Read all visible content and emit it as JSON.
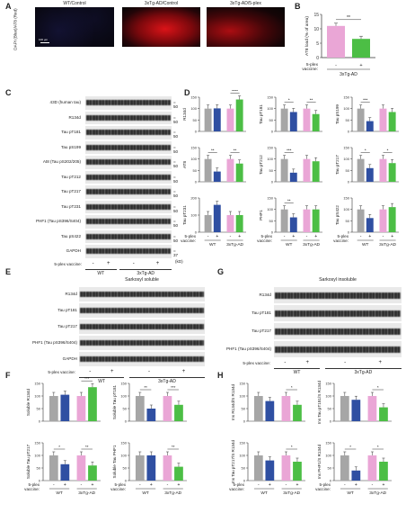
{
  "panels": {
    "A": {
      "letter": "A",
      "ylabel": "DAPI (Blue)/AT8 (Red)",
      "images": [
        "WT/Control",
        "3xTg-AD/Control",
        "3xTg-AD/5-plex"
      ],
      "scalebar": "100 μm"
    },
    "B": {
      "letter": "B",
      "ylabel": "AT8 load (% of area)",
      "xlabel_group": "3xTg-AD",
      "vaccine_label": "5-plex vaccine:",
      "signs": [
        "-",
        "+"
      ],
      "significance": "**"
    },
    "C": {
      "letter": "C",
      "bands": [
        "43D (human tau)",
        "R134d",
        "Tau pT181",
        "Tau pS199",
        "At8 (Tau pS202/205)",
        "Tau pT212",
        "Tau pT217",
        "Tau pT231",
        "PHF1 (Tau pS396/S404)",
        "Tau pS422",
        "GAPDH"
      ],
      "mw": [
        "50",
        "50",
        "50",
        "50",
        "50",
        "50",
        "50",
        "50",
        "50",
        "50",
        "37"
      ],
      "kd": "(kD)",
      "vaccine_label": "5-plex vaccine:",
      "signs": [
        "-",
        "+",
        "-",
        "+"
      ],
      "groups": [
        "WT",
        "3xTg-AD"
      ]
    },
    "D": {
      "letter": "D",
      "vaccine_label": "5-plex vaccine:",
      "groups": [
        "WT",
        "3xTg-AD"
      ],
      "signs": [
        "-",
        "+",
        "-",
        "+"
      ]
    },
    "E": {
      "letter": "E",
      "title": "Sarkosyl soluble",
      "bands": [
        "R134d",
        "Tau pT181",
        "Tau pT217",
        "PHF1 (Tau pS396/S404)",
        "GAPDH"
      ],
      "vaccine_label": "5-plex vaccine:",
      "signs": [
        "-",
        "+",
        "-",
        "+"
      ],
      "groups": [
        "WT",
        "3xTg-AD"
      ]
    },
    "F": {
      "letter": "F",
      "vaccine_label": "5-plex vaccine:",
      "groups": [
        "WT",
        "3xTg-AD"
      ],
      "signs": [
        "-",
        "+",
        "-",
        "+"
      ]
    },
    "G": {
      "letter": "G",
      "title": "Sarkosyl insoluble",
      "bands": [
        "R134d",
        "Tau pT181",
        "Tau pT217",
        "PHF1 (Tau pS396/S404)"
      ],
      "vaccine_label": "5-plex vaccine:",
      "signs": [
        "-",
        "+",
        "-",
        "+"
      ],
      "groups": [
        "WT",
        "3xTg-AD"
      ]
    },
    "H": {
      "letter": "H",
      "vaccine_label": "5-plex vaccine:",
      "groups": [
        "WT",
        "3xTg-AD"
      ],
      "signs": [
        "-",
        "+",
        "-",
        "+"
      ]
    }
  },
  "colors": {
    "wt_ctrl": "#a6a6a6",
    "wt_vac": "#2f4fa2",
    "ad_ctrl": "#eaa6d6",
    "ad_vac": "#4cbe45"
  },
  "chart_data": [
    {
      "type": "bar",
      "panel": "B",
      "categories": [
        "-",
        "+"
      ],
      "values": [
        11,
        6.5
      ],
      "ylabel": "AT8 load (% of area)",
      "ylim": [
        0,
        15
      ],
      "yticks": [
        0,
        5,
        10,
        15
      ],
      "sig": [
        "**"
      ]
    },
    {
      "type": "bar",
      "panel": "D",
      "ylabel": "R134d",
      "ylim": [
        0,
        150
      ],
      "yticks": [
        0,
        50,
        100,
        150
      ],
      "values": [
        100,
        101,
        100,
        140
      ],
      "sig": [
        "",
        "****"
      ]
    },
    {
      "type": "bar",
      "panel": "D",
      "ylabel": "Tau pT181",
      "ylim": [
        0,
        150
      ],
      "yticks": [
        0,
        50,
        100,
        150
      ],
      "values": [
        100,
        85,
        100,
        76
      ],
      "sig": [
        "*",
        "**"
      ]
    },
    {
      "type": "bar",
      "panel": "D",
      "ylabel": "Tau pS199",
      "ylim": [
        0,
        150
      ],
      "yticks": [
        0,
        50,
        100,
        150
      ],
      "values": [
        100,
        45,
        100,
        85
      ],
      "sig": [
        "***",
        ""
      ]
    },
    {
      "type": "bar",
      "panel": "D",
      "ylabel": "AT8",
      "ylim": [
        0,
        150
      ],
      "yticks": [
        0,
        50,
        100,
        150
      ],
      "values": [
        100,
        45,
        100,
        80
      ],
      "sig": [
        "**",
        "**"
      ]
    },
    {
      "type": "bar",
      "panel": "D",
      "ylabel": "Tau pT212",
      "ylim": [
        0,
        150
      ],
      "yticks": [
        0,
        50,
        100,
        150
      ],
      "values": [
        100,
        40,
        100,
        90
      ],
      "sig": [
        "***",
        ""
      ]
    },
    {
      "type": "bar",
      "panel": "D",
      "ylabel": "Tau pT217",
      "ylim": [
        0,
        150
      ],
      "yticks": [
        0,
        50,
        100,
        150
      ],
      "values": [
        100,
        60,
        100,
        82
      ],
      "sig": [
        "*",
        "*"
      ]
    },
    {
      "type": "bar",
      "panel": "D",
      "ylabel": "Tau pT231",
      "ylim": [
        0,
        200
      ],
      "yticks": [
        0,
        100,
        200
      ],
      "values": [
        100,
        160,
        100,
        100
      ],
      "sig": [
        "",
        ""
      ]
    },
    {
      "type": "bar",
      "panel": "D",
      "ylabel": "PHF1",
      "ylim": [
        0,
        150
      ],
      "yticks": [
        0,
        50,
        100,
        150
      ],
      "values": [
        100,
        65,
        100,
        100
      ],
      "sig": [
        "**",
        ""
      ]
    },
    {
      "type": "bar",
      "panel": "D",
      "ylabel": "Tau pS422",
      "ylim": [
        0,
        150
      ],
      "yticks": [
        0,
        50,
        100,
        150
      ],
      "values": [
        100,
        62,
        100,
        110
      ],
      "sig": [
        "",
        ""
      ]
    },
    {
      "type": "bar",
      "panel": "F",
      "ylabel": "Soluble R134d",
      "ylim": [
        0,
        150
      ],
      "yticks": [
        0,
        50,
        100,
        150
      ],
      "values": [
        100,
        105,
        100,
        135
      ],
      "sig": [
        "",
        "***"
      ]
    },
    {
      "type": "bar",
      "panel": "F",
      "ylabel": "Soluble Tau pT181",
      "ylim": [
        0,
        150
      ],
      "yticks": [
        0,
        50,
        100,
        150
      ],
      "values": [
        100,
        50,
        100,
        65
      ],
      "sig": [
        "**",
        "***"
      ]
    },
    {
      "type": "bar",
      "panel": "F",
      "ylabel": "Soluble Tau pT217",
      "ylim": [
        0,
        150
      ],
      "yticks": [
        0,
        50,
        100,
        150
      ],
      "values": [
        100,
        65,
        100,
        60
      ],
      "sig": [
        "*",
        "**"
      ]
    },
    {
      "type": "bar",
      "panel": "F",
      "ylabel": "Soluble Tau PHF1",
      "ylim": [
        0,
        150
      ],
      "yticks": [
        0,
        50,
        100,
        150
      ],
      "values": [
        100,
        100,
        100,
        55
      ],
      "sig": [
        "",
        "**"
      ]
    },
    {
      "type": "bar",
      "panel": "H",
      "ylabel": "Ins R134d/S R134d",
      "ylim": [
        0,
        150
      ],
      "yticks": [
        0,
        50,
        100,
        150
      ],
      "values": [
        100,
        80,
        100,
        65
      ],
      "sig": [
        "",
        "*"
      ]
    },
    {
      "type": "bar",
      "panel": "H",
      "ylabel": "Ins Tau pT181/S R134d",
      "ylim": [
        0,
        150
      ],
      "yticks": [
        0,
        50,
        100,
        150
      ],
      "values": [
        100,
        85,
        100,
        55
      ],
      "sig": [
        "",
        "*"
      ]
    },
    {
      "type": "bar",
      "panel": "H",
      "ylabel": "Ins Tau pT217/S R134d",
      "ylim": [
        0,
        150
      ],
      "yticks": [
        0,
        50,
        100,
        150
      ],
      "values": [
        100,
        80,
        100,
        75
      ],
      "sig": [
        "",
        "*"
      ]
    },
    {
      "type": "bar",
      "panel": "H",
      "ylabel": "Ins PHF1/S R134d",
      "ylim": [
        0,
        150
      ],
      "yticks": [
        0,
        50,
        100,
        150
      ],
      "values": [
        100,
        40,
        100,
        75
      ],
      "sig": [
        "*",
        "*"
      ]
    }
  ]
}
